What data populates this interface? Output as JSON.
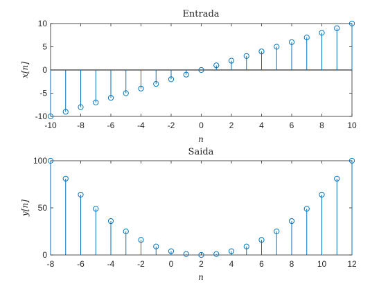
{
  "chart_data": [
    {
      "type": "stem",
      "title": "Entrada",
      "xlabel": "n",
      "ylabel": "x[n]",
      "xlim": [
        -10,
        10
      ],
      "ylim": [
        -10,
        10
      ],
      "xticks": [
        "-10",
        "-8",
        "-6",
        "-4",
        "-2",
        "0",
        "2",
        "4",
        "6",
        "8",
        "10"
      ],
      "yticks": [
        "-10",
        "-5",
        "0",
        "5",
        "10"
      ],
      "color": "#0072BD",
      "marker": "circle",
      "x": [
        -10,
        -9,
        -8,
        -7,
        -6,
        -5,
        -4,
        -3,
        -2,
        -1,
        0,
        1,
        2,
        3,
        4,
        5,
        6,
        7,
        8,
        9,
        10
      ],
      "y": [
        -10,
        -9,
        -8,
        -7,
        -6,
        -5,
        -4,
        -3,
        -2,
        -1,
        0,
        1,
        2,
        3,
        4,
        5,
        6,
        7,
        8,
        9,
        10
      ]
    },
    {
      "type": "stem",
      "title": "Saida",
      "xlabel": "n",
      "ylabel": "y[n]",
      "xlim": [
        -8,
        12
      ],
      "ylim": [
        0,
        100
      ],
      "xticks": [
        "-8",
        "-6",
        "-4",
        "-2",
        "0",
        "2",
        "4",
        "6",
        "8",
        "10",
        "12"
      ],
      "yticks": [
        "0",
        "50",
        "100"
      ],
      "color": "#0072BD",
      "marker": "circle",
      "x": [
        -8,
        -7,
        -6,
        -5,
        -4,
        -3,
        -2,
        -1,
        0,
        1,
        2,
        3,
        4,
        5,
        6,
        7,
        8,
        9,
        10,
        11,
        12
      ],
      "y": [
        100,
        81,
        64,
        49,
        36,
        25,
        16,
        9,
        4,
        1,
        0,
        1,
        4,
        9,
        16,
        25,
        36,
        49,
        64,
        81,
        100
      ]
    }
  ]
}
